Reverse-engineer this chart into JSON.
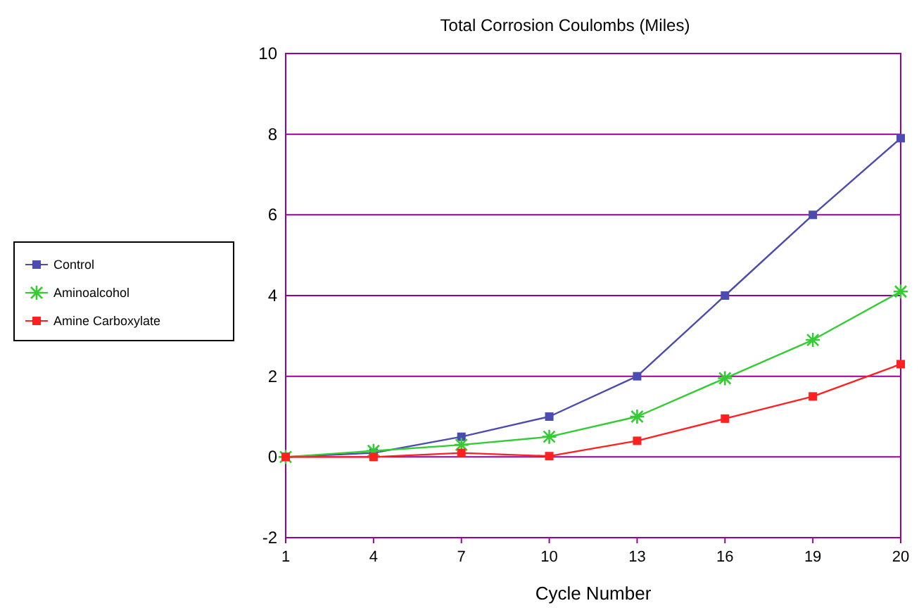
{
  "chart_data": {
    "type": "line",
    "title": "Total Corrosion Coulombs (Miles)",
    "xlabel": "Cycle Number",
    "categories": [
      "1",
      "4",
      "7",
      "10",
      "13",
      "16",
      "19",
      "20"
    ],
    "series": [
      {
        "name": "Control",
        "color": "#4b4bb0",
        "marker": "square",
        "values": [
          0,
          0.1,
          0.5,
          1.0,
          2.0,
          4.0,
          6.0,
          7.9
        ]
      },
      {
        "name": "Aminoalcohol",
        "color": "#33cc33",
        "marker": "cross",
        "values": [
          0,
          0.15,
          0.3,
          0.5,
          1.0,
          1.95,
          2.9,
          4.1
        ]
      },
      {
        "name": "Amine Carboxylate",
        "color": "#ff2020",
        "marker": "square",
        "values": [
          0,
          0,
          0.1,
          0.02,
          0.4,
          0.95,
          1.5,
          2.3
        ]
      }
    ],
    "ylim": [
      -2,
      10
    ],
    "yticks": [
      -2,
      0,
      2,
      4,
      6,
      8,
      10
    ],
    "grid": "y",
    "legend": "left"
  }
}
